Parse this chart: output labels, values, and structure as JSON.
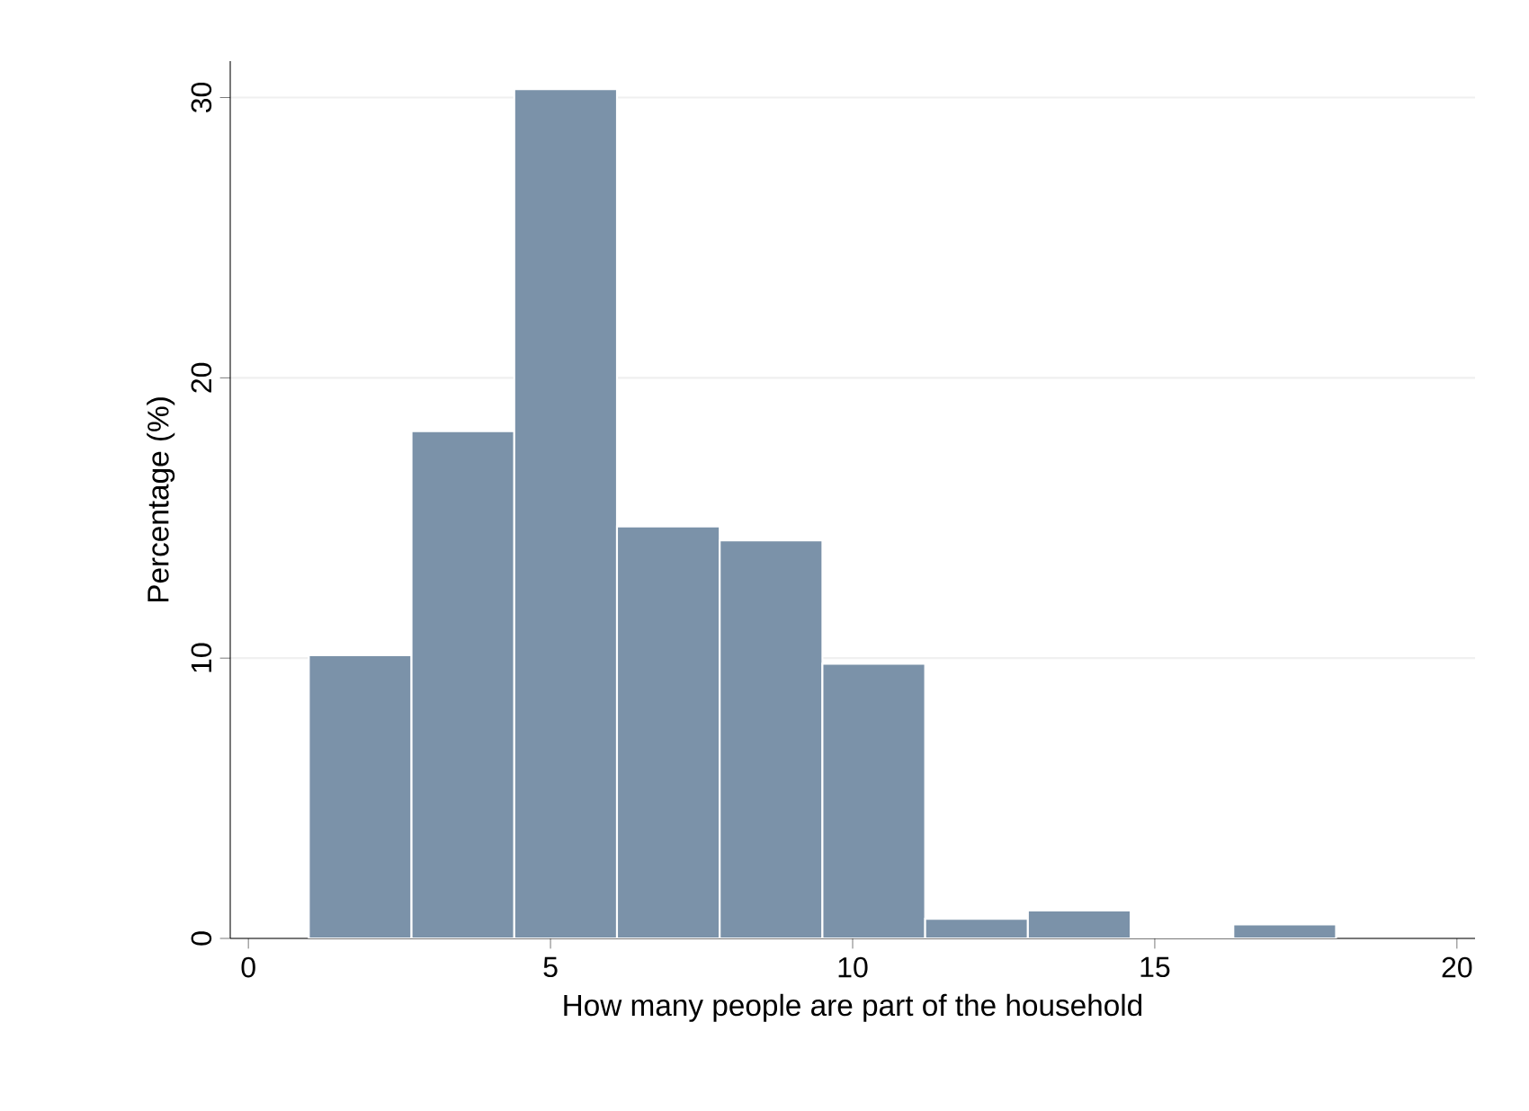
{
  "chart_data": {
    "type": "histogram",
    "xlabel": "How many people are part of the household",
    "ylabel": "Percentage (%)",
    "bins": [
      1,
      2.7,
      4.4,
      6.1,
      7.8,
      9.5,
      11.2,
      12.9,
      14.6,
      16.3,
      18
    ],
    "values": [
      10.1,
      18.1,
      30.3,
      14.7,
      14.2,
      9.8,
      0.7,
      1.0,
      0,
      0.5
    ],
    "color": "#7b92a9",
    "xlim": [
      -0.3,
      20.3
    ],
    "ylim": [
      0,
      31.3
    ],
    "xticks": [
      0,
      5,
      10,
      15,
      20
    ],
    "yticks": [
      0,
      10,
      20,
      30
    ],
    "grid": "y"
  }
}
